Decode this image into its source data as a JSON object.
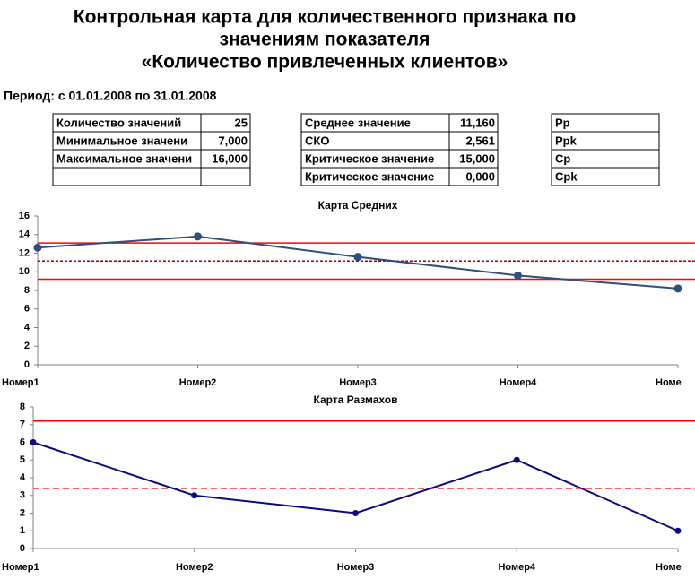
{
  "header": {
    "title_lines": [
      "Контрольная карта для количественного признака по",
      "значениям показателя",
      "«Количество привлеченных клиентов»"
    ],
    "period": "Период: с 01.01.2008  по 31.01.2008"
  },
  "tables": [
    {
      "rows": [
        [
          "Количество значений",
          "25"
        ],
        [
          "Минимальное значени",
          "7,000"
        ],
        [
          "Максимальное значени",
          "16,000"
        ]
      ]
    },
    {
      "rows": [
        [
          "Среднее значение",
          "11,160"
        ],
        [
          "СКО",
          "2,561"
        ],
        [
          "Критическое значение",
          "15,000"
        ],
        [
          "Критическое значение",
          "0,000"
        ]
      ]
    },
    {
      "rows": [
        [
          "Pp"
        ],
        [
          "Ppk"
        ],
        [
          "Cp"
        ],
        [
          "Cpk"
        ]
      ]
    }
  ],
  "chart_data": [
    {
      "type": "line",
      "title": "Карта Средних",
      "categories": [
        "Номер1",
        "Номер2",
        "Номер3",
        "Номер4",
        "Номе"
      ],
      "series": [
        {
          "color": "#2f4f7f",
          "values": [
            12.6,
            13.8,
            11.6,
            9.6,
            8.2
          ]
        }
      ],
      "ylim": [
        0,
        16
      ],
      "yticks": [
        0,
        2,
        4,
        6,
        8,
        10,
        12,
        14,
        16
      ],
      "reference_lines": [
        {
          "value": 13.1,
          "color": "#ff0000",
          "style": "solid"
        },
        {
          "value": 11.16,
          "color": "#a00000",
          "style": "dotted"
        },
        {
          "value": 9.2,
          "color": "#ff0000",
          "style": "solid"
        }
      ]
    },
    {
      "type": "line",
      "title": "Карта Размахов",
      "categories": [
        "Номер1",
        "Номер2",
        "Номер3",
        "Номер4",
        "Номе"
      ],
      "series": [
        {
          "color": "#0a0a80",
          "values": [
            6,
            3,
            2,
            5,
            1
          ]
        }
      ],
      "ylim": [
        0,
        8
      ],
      "yticks": [
        0,
        1,
        2,
        3,
        4,
        5,
        6,
        7,
        8
      ],
      "reference_lines": [
        {
          "value": 7.2,
          "color": "#ff0000",
          "style": "solid"
        },
        {
          "value": 3.4,
          "color": "#ff0000",
          "style": "dashed"
        }
      ]
    }
  ]
}
